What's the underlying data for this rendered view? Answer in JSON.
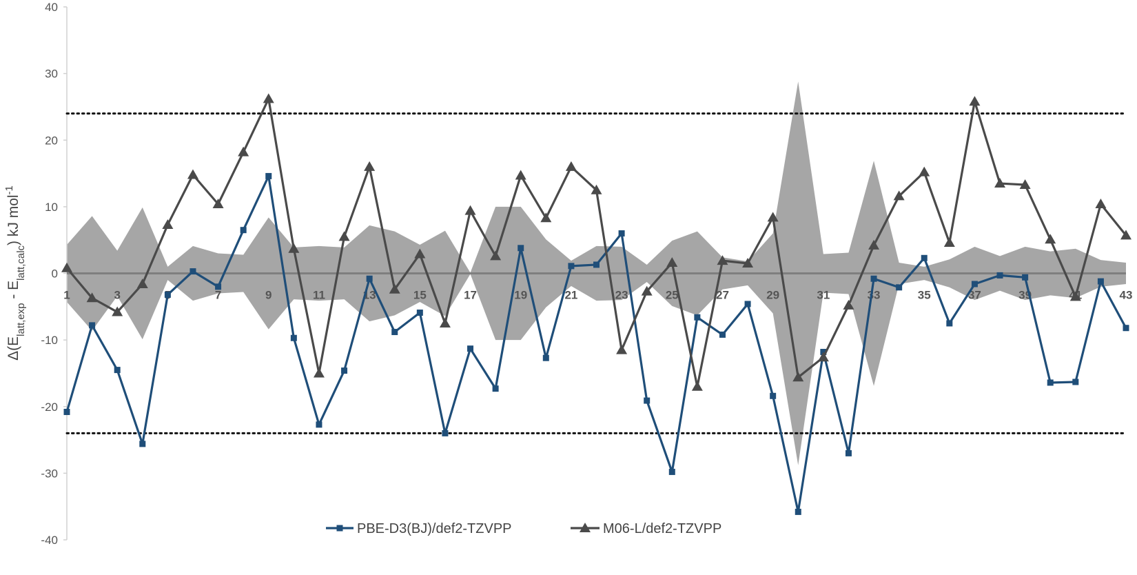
{
  "chart_data": {
    "type": "line",
    "title": "",
    "xlabel": "",
    "ylabel": {
      "prefix": "Δ(E",
      "sub1": "latt,exp",
      "mid": " - E",
      "sub2": "latt,calc",
      "suffix": ") kJ mol",
      "sup": "-1"
    },
    "ylim": [
      -40,
      40
    ],
    "yticks": [
      -40,
      -30,
      -20,
      -10,
      0,
      10,
      20,
      30,
      40
    ],
    "x": [
      1,
      2,
      3,
      4,
      5,
      6,
      7,
      8,
      9,
      10,
      11,
      12,
      13,
      14,
      15,
      16,
      17,
      18,
      19,
      20,
      21,
      22,
      23,
      24,
      25,
      26,
      27,
      28,
      29,
      30,
      31,
      32,
      33,
      34,
      35,
      36,
      37,
      38,
      39,
      40,
      41,
      42,
      43
    ],
    "xtick_labels": [
      "1",
      "3",
      "5",
      "7",
      "9",
      "11",
      "13",
      "15",
      "17",
      "19",
      "21",
      "23",
      "25",
      "27",
      "29",
      "31",
      "33",
      "35",
      "37",
      "39",
      "41",
      "43"
    ],
    "reference_lines": [
      24,
      -24
    ],
    "uncertainty_band": [
      4.3,
      8.6,
      3.4,
      9.9,
      1.0,
      4.1,
      3.0,
      2.8,
      8.4,
      3.9,
      4.1,
      3.9,
      7.2,
      6.3,
      4.3,
      6.4,
      0.1,
      10.0,
      10.0,
      5.1,
      1.9,
      4.1,
      4.0,
      1.3,
      4.9,
      6.3,
      2.4,
      1.8,
      6.0,
      28.8,
      2.9,
      3.1,
      16.9,
      1.6,
      1.0,
      2.1,
      4.0,
      2.6,
      4.0,
      3.3,
      3.7,
      2.0,
      1.6
    ],
    "series": [
      {
        "name": "PBE-D3(BJ)/def2-TZVPP",
        "color": "#1f4e79",
        "marker": "square",
        "values": [
          -20.8,
          -7.8,
          -14.5,
          -25.6,
          -3.2,
          0.3,
          -2.0,
          6.5,
          14.6,
          -9.7,
          -22.7,
          -14.6,
          -0.8,
          -8.8,
          -5.9,
          -24.0,
          -11.3,
          -17.3,
          3.8,
          -12.7,
          1.1,
          1.3,
          6.0,
          -19.1,
          -29.8,
          -6.6,
          -9.2,
          -4.6,
          -18.4,
          -35.8,
          -11.8,
          -27.0,
          -0.8,
          -2.1,
          2.3,
          -7.5,
          -1.6,
          -0.3,
          -0.6,
          -16.4,
          -16.3,
          -1.2,
          -8.2
        ]
      },
      {
        "name": "M06-L/def2-TZVPP",
        "color": "#4a4a4a",
        "marker": "triangle",
        "values": [
          0.8,
          -3.7,
          -5.8,
          -1.6,
          7.3,
          14.8,
          10.4,
          18.2,
          26.2,
          3.7,
          -15.0,
          5.5,
          16.0,
          -2.4,
          2.9,
          -7.5,
          9.4,
          2.6,
          14.7,
          8.3,
          16.0,
          12.5,
          -11.5,
          -2.7,
          1.6,
          -17.0,
          1.9,
          1.5,
          8.4,
          -15.6,
          -12.6,
          -4.8,
          4.2,
          11.6,
          15.2,
          4.6,
          25.8,
          13.5,
          13.3,
          5.1,
          -3.5,
          10.4,
          5.7
        ]
      }
    ],
    "legend_position": "bottom-center",
    "grid": false
  }
}
